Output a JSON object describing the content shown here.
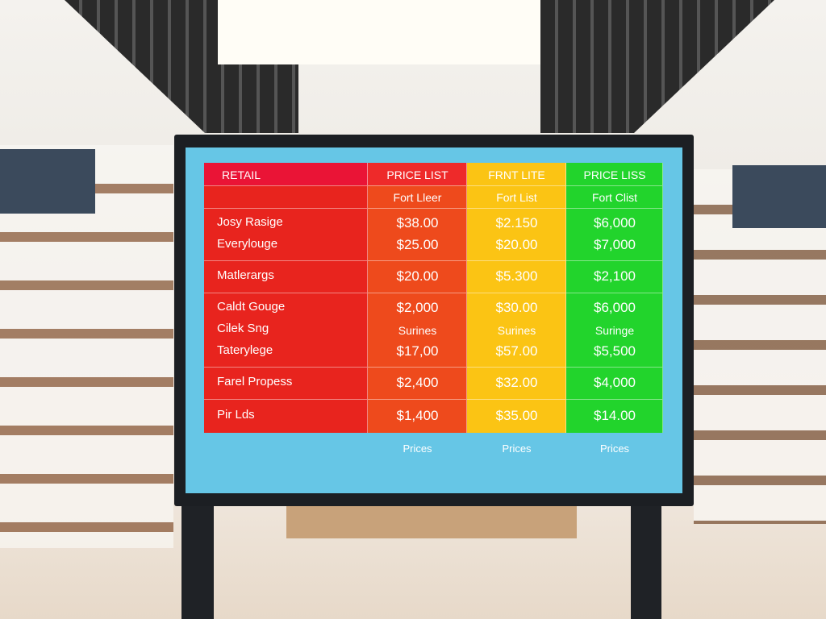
{
  "table": {
    "header": [
      "RETAIL",
      "PRICE LIST",
      "FRNT LITE",
      "PRICE LISS"
    ],
    "rows": [
      {
        "cells": [
          [
            "Fort Lleer"
          ],
          [
            "Fort List"
          ],
          [
            "Fort Clist"
          ]
        ]
      },
      {
        "labels": [
          "Josy Rasige",
          "Everylouge"
        ],
        "cells": [
          [
            "$38.00",
            "$25.00"
          ],
          [
            "$2.150",
            "$20.00"
          ],
          [
            "$6,000",
            "$7,000"
          ]
        ]
      },
      {
        "labels": [
          "Matlerargs"
        ],
        "cells": [
          [
            "$20.00"
          ],
          [
            "$5.300"
          ],
          [
            "$2,100"
          ]
        ]
      },
      {
        "labels": [
          "Caldt Gouge",
          "Cilek Sng",
          "Taterylege"
        ],
        "cells": [
          [
            "$2,000",
            "Surines",
            "$17,00"
          ],
          [
            "$30.00",
            "Surines",
            "$57.00"
          ],
          [
            "$6,000",
            "Suringe",
            "$5,500"
          ]
        ]
      },
      {
        "labels": [
          "Farel Propess"
        ],
        "cells": [
          [
            "$2,400"
          ],
          [
            "$32.00"
          ],
          [
            "$4,000"
          ]
        ]
      },
      {
        "labels": [
          "Pir Lds"
        ],
        "cells": [
          [
            "$1,400"
          ],
          [
            "$35.00"
          ],
          [
            "$14.00"
          ]
        ]
      }
    ],
    "footer": [
      "Prices",
      "Prices",
      "Prices"
    ]
  }
}
